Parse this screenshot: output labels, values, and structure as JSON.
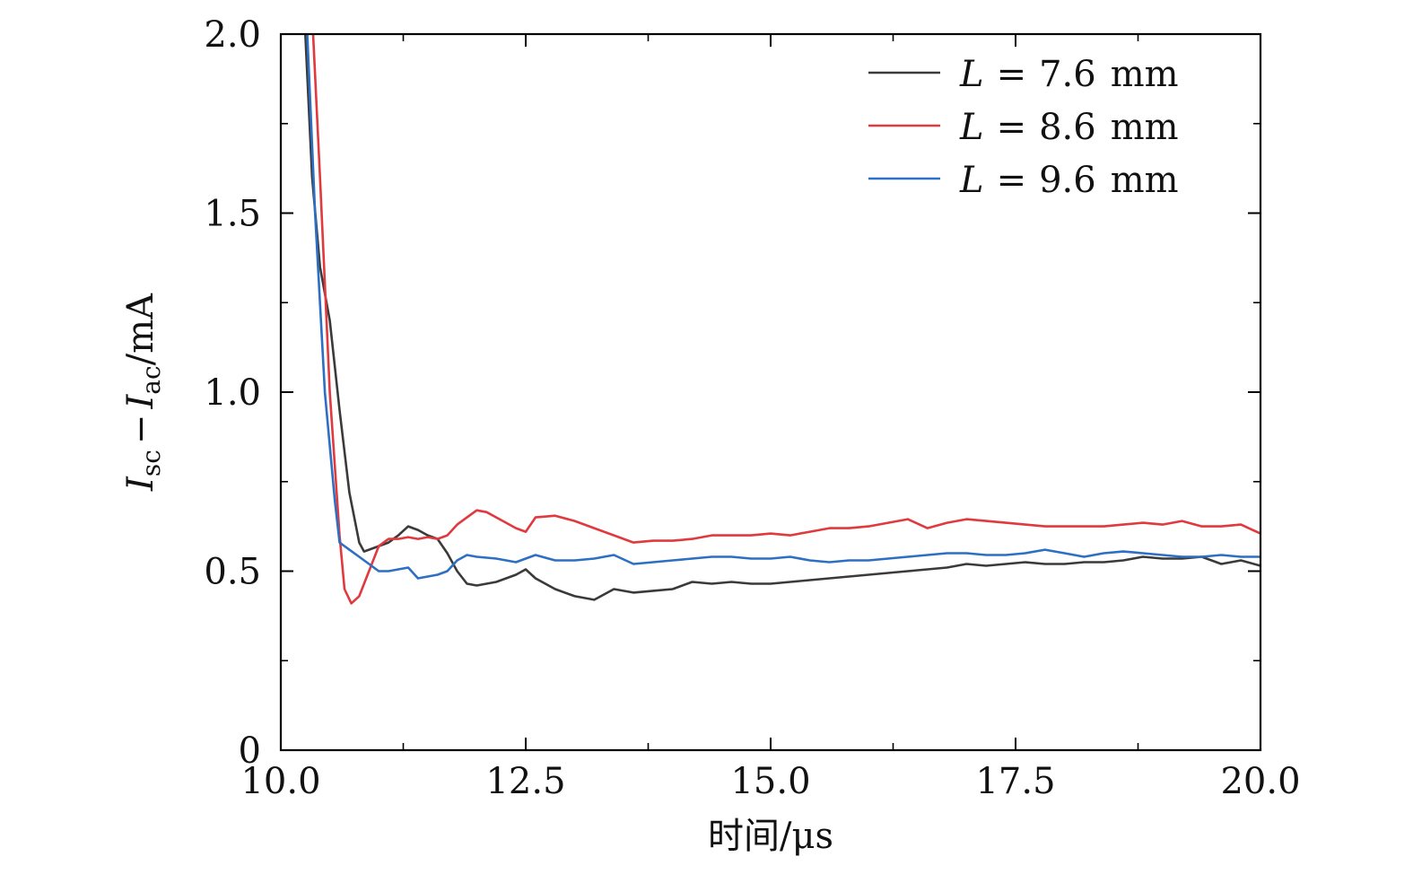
{
  "chart_data": {
    "type": "line",
    "title": "",
    "xlabel": "时间/μs",
    "ylabel": {
      "main_1": "I",
      "sub_1": "sc",
      "minus": "−",
      "main_2": "I",
      "sub_2": "ac",
      "unit": "/mA"
    },
    "xlim": [
      10.0,
      20.0
    ],
    "ylim": [
      0,
      2.0
    ],
    "x_ticks": [
      {
        "value": 10.0,
        "label": "10.0"
      },
      {
        "value": 12.5,
        "label": "12.5"
      },
      {
        "value": 15.0,
        "label": "15.0"
      },
      {
        "value": 17.5,
        "label": "17.5"
      },
      {
        "value": 20.0,
        "label": "20.0"
      }
    ],
    "x_minor_ticks": [
      11.25,
      13.75,
      16.25,
      18.75
    ],
    "y_ticks": [
      {
        "value": 0,
        "label": "0"
      },
      {
        "value": 0.5,
        "label": "0.5"
      },
      {
        "value": 1.0,
        "label": "1.0"
      },
      {
        "value": 1.5,
        "label": "1.5"
      },
      {
        "value": 2.0,
        "label": "2.0"
      }
    ],
    "y_minor_ticks": [
      0.25,
      0.75,
      1.25,
      1.75
    ],
    "grid": false,
    "legend_position": "top-right",
    "series": [
      {
        "name": "L = 7.6 mm",
        "legend": {
          "var": "L",
          "eq": "=",
          "value": "7.6",
          "unit": "mm"
        },
        "color": "#3a3a3a",
        "x": [
          10.25,
          10.32,
          10.4,
          10.5,
          10.6,
          10.7,
          10.8,
          10.85,
          10.9,
          11.0,
          11.1,
          11.2,
          11.3,
          11.4,
          11.5,
          11.6,
          11.7,
          11.8,
          11.9,
          12.0,
          12.2,
          12.4,
          12.5,
          12.6,
          12.8,
          13.0,
          13.2,
          13.4,
          13.6,
          13.8,
          14.0,
          14.2,
          14.4,
          14.6,
          14.8,
          15.0,
          15.2,
          15.4,
          15.6,
          15.8,
          16.0,
          16.2,
          16.4,
          16.6,
          16.8,
          17.0,
          17.2,
          17.4,
          17.6,
          17.8,
          18.0,
          18.2,
          18.4,
          18.6,
          18.8,
          19.0,
          19.2,
          19.4,
          19.6,
          19.8,
          20.0
        ],
        "y": [
          2.0,
          1.6,
          1.35,
          1.2,
          0.95,
          0.72,
          0.58,
          0.555,
          0.56,
          0.57,
          0.58,
          0.6,
          0.625,
          0.615,
          0.6,
          0.59,
          0.55,
          0.5,
          0.465,
          0.46,
          0.47,
          0.49,
          0.505,
          0.48,
          0.45,
          0.43,
          0.42,
          0.45,
          0.44,
          0.445,
          0.45,
          0.47,
          0.465,
          0.47,
          0.465,
          0.465,
          0.47,
          0.475,
          0.48,
          0.485,
          0.49,
          0.495,
          0.5,
          0.505,
          0.51,
          0.52,
          0.515,
          0.52,
          0.525,
          0.52,
          0.52,
          0.525,
          0.525,
          0.53,
          0.54,
          0.535,
          0.535,
          0.54,
          0.52,
          0.53,
          0.515
        ]
      },
      {
        "name": "L = 8.6 mm",
        "legend": {
          "var": "L",
          "eq": "=",
          "value": "8.6",
          "unit": "mm"
        },
        "color": "#e0393e",
        "x": [
          10.33,
          10.4,
          10.5,
          10.6,
          10.65,
          10.72,
          10.8,
          10.9,
          11.0,
          11.1,
          11.2,
          11.3,
          11.4,
          11.5,
          11.6,
          11.7,
          11.8,
          11.9,
          12.0,
          12.1,
          12.2,
          12.3,
          12.4,
          12.5,
          12.6,
          12.8,
          13.0,
          13.2,
          13.4,
          13.6,
          13.8,
          14.0,
          14.2,
          14.4,
          14.6,
          14.8,
          15.0,
          15.2,
          15.4,
          15.6,
          15.8,
          16.0,
          16.2,
          16.4,
          16.6,
          16.8,
          17.0,
          17.2,
          17.4,
          17.6,
          17.8,
          18.0,
          18.2,
          18.4,
          18.6,
          18.8,
          19.0,
          19.2,
          19.4,
          19.6,
          19.8,
          20.0
        ],
        "y": [
          2.0,
          1.6,
          1.0,
          0.6,
          0.45,
          0.41,
          0.43,
          0.5,
          0.57,
          0.59,
          0.59,
          0.595,
          0.59,
          0.595,
          0.59,
          0.6,
          0.63,
          0.65,
          0.67,
          0.665,
          0.65,
          0.635,
          0.62,
          0.61,
          0.65,
          0.655,
          0.64,
          0.62,
          0.6,
          0.58,
          0.585,
          0.585,
          0.59,
          0.6,
          0.6,
          0.6,
          0.605,
          0.6,
          0.61,
          0.62,
          0.62,
          0.625,
          0.635,
          0.645,
          0.62,
          0.635,
          0.645,
          0.64,
          0.635,
          0.63,
          0.625,
          0.625,
          0.625,
          0.625,
          0.63,
          0.635,
          0.63,
          0.64,
          0.625,
          0.625,
          0.63,
          0.605
        ]
      },
      {
        "name": "L = 9.6 mm",
        "legend": {
          "var": "L",
          "eq": "=",
          "value": "9.6",
          "unit": "mm"
        },
        "color": "#2d6fc3",
        "x": [
          10.27,
          10.35,
          10.45,
          10.55,
          10.6,
          10.7,
          10.8,
          10.9,
          11.0,
          11.1,
          11.2,
          11.3,
          11.4,
          11.5,
          11.6,
          11.7,
          11.8,
          11.9,
          12.0,
          12.2,
          12.4,
          12.6,
          12.8,
          13.0,
          13.2,
          13.4,
          13.6,
          13.8,
          14.0,
          14.2,
          14.4,
          14.6,
          14.8,
          15.0,
          15.2,
          15.4,
          15.6,
          15.8,
          16.0,
          16.2,
          16.4,
          16.6,
          16.8,
          17.0,
          17.2,
          17.4,
          17.6,
          17.8,
          18.0,
          18.2,
          18.4,
          18.6,
          18.8,
          19.0,
          19.2,
          19.4,
          19.6,
          19.8,
          20.0
        ],
        "y": [
          2.0,
          1.5,
          1.0,
          0.7,
          0.58,
          0.56,
          0.54,
          0.52,
          0.5,
          0.5,
          0.505,
          0.51,
          0.48,
          0.485,
          0.49,
          0.5,
          0.53,
          0.545,
          0.54,
          0.535,
          0.525,
          0.545,
          0.53,
          0.53,
          0.535,
          0.545,
          0.52,
          0.525,
          0.53,
          0.535,
          0.54,
          0.54,
          0.535,
          0.535,
          0.54,
          0.53,
          0.525,
          0.53,
          0.53,
          0.535,
          0.54,
          0.545,
          0.55,
          0.55,
          0.545,
          0.545,
          0.55,
          0.56,
          0.55,
          0.54,
          0.55,
          0.555,
          0.55,
          0.545,
          0.54,
          0.54,
          0.545,
          0.54,
          0.54
        ]
      }
    ]
  }
}
